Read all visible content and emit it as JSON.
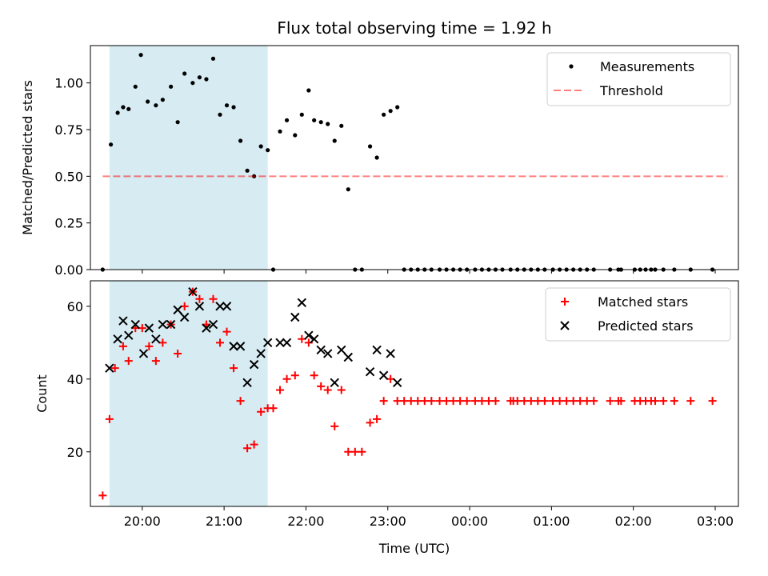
{
  "chart_data": [
    {
      "type": "scatter",
      "title": "Flux total observing time = 1.92 h",
      "xlabel": "",
      "ylabel": "Matched/Predicted stars",
      "ylim": [
        0,
        1.2
      ],
      "xlim": [
        "19:22",
        "03:17"
      ],
      "yticks": [
        0.0,
        0.25,
        0.5,
        0.75,
        1.0
      ],
      "ytick_labels": [
        "0.00",
        "0.25",
        "0.50",
        "0.75",
        "1.00"
      ],
      "shaded_span": [
        "19:36",
        "21:32"
      ],
      "shaded_color": "#add8e6",
      "legend_position": "upper right",
      "series": [
        {
          "name": "Measurements",
          "marker": "dot",
          "color": "#000000",
          "points": [
            [
              "19:31",
              0.0
            ],
            [
              "19:37",
              0.67
            ],
            [
              "19:42",
              0.84
            ],
            [
              "19:46",
              0.87
            ],
            [
              "19:50",
              0.86
            ],
            [
              "19:55",
              0.98
            ],
            [
              "19:59",
              1.15
            ],
            [
              "20:04",
              0.9
            ],
            [
              "20:10",
              0.88
            ],
            [
              "20:15",
              0.91
            ],
            [
              "20:21",
              0.98
            ],
            [
              "20:26",
              0.79
            ],
            [
              "20:31",
              1.05
            ],
            [
              "20:37",
              1.0
            ],
            [
              "20:42",
              1.03
            ],
            [
              "20:47",
              1.02
            ],
            [
              "20:52",
              1.13
            ],
            [
              "20:57",
              0.83
            ],
            [
              "21:02",
              0.88
            ],
            [
              "21:07",
              0.87
            ],
            [
              "21:12",
              0.69
            ],
            [
              "21:17",
              0.53
            ],
            [
              "21:22",
              0.5
            ],
            [
              "21:27",
              0.66
            ],
            [
              "21:32",
              0.64
            ],
            [
              "21:36",
              0.0
            ],
            [
              "21:41",
              0.74
            ],
            [
              "21:46",
              0.8
            ],
            [
              "21:52",
              0.72
            ],
            [
              "21:57",
              0.83
            ],
            [
              "22:02",
              0.96
            ],
            [
              "22:06",
              0.8
            ],
            [
              "22:11",
              0.79
            ],
            [
              "22:16",
              0.78
            ],
            [
              "22:21",
              0.69
            ],
            [
              "22:26",
              0.77
            ],
            [
              "22:31",
              0.43
            ],
            [
              "22:36",
              0.0
            ],
            [
              "22:41",
              0.0
            ],
            [
              "22:47",
              0.66
            ],
            [
              "22:52",
              0.6
            ],
            [
              "22:57",
              0.83
            ],
            [
              "23:02",
              0.85
            ],
            [
              "23:07",
              0.87
            ],
            [
              "23:12",
              0.0
            ],
            [
              "23:17",
              0.0
            ],
            [
              "23:22",
              0.0
            ],
            [
              "23:27",
              0.0
            ],
            [
              "23:32",
              0.0
            ],
            [
              "23:38",
              0.0
            ],
            [
              "23:43",
              0.0
            ],
            [
              "23:48",
              0.0
            ],
            [
              "23:53",
              0.0
            ],
            [
              "23:58",
              0.0
            ],
            [
              "00:04",
              0.0
            ],
            [
              "00:09",
              0.0
            ],
            [
              "00:14",
              0.0
            ],
            [
              "00:19",
              0.0
            ],
            [
              "00:24",
              0.0
            ],
            [
              "00:30",
              0.0
            ],
            [
              "00:35",
              0.0
            ],
            [
              "00:40",
              0.0
            ],
            [
              "00:45",
              0.0
            ],
            [
              "00:50",
              0.0
            ],
            [
              "00:55",
              0.0
            ],
            [
              "01:01",
              0.0
            ],
            [
              "01:06",
              0.0
            ],
            [
              "01:11",
              0.0
            ],
            [
              "01:16",
              0.0
            ],
            [
              "01:21",
              0.0
            ],
            [
              "01:26",
              0.0
            ],
            [
              "01:31",
              0.0
            ],
            [
              "01:43",
              0.0
            ],
            [
              "01:49",
              0.0
            ],
            [
              "01:51",
              0.0
            ],
            [
              "02:01",
              0.0
            ],
            [
              "02:05",
              0.0
            ],
            [
              "02:09",
              0.0
            ],
            [
              "02:13",
              0.0
            ],
            [
              "02:16",
              0.0
            ],
            [
              "02:22",
              0.0
            ],
            [
              "02:30",
              0.0
            ],
            [
              "02:42",
              0.0
            ],
            [
              "02:58",
              0.0
            ]
          ]
        },
        {
          "name": "Threshold",
          "type": "line",
          "style": "dashed",
          "color": "#ff0000",
          "alpha": 0.5,
          "points": [
            [
              "19:31",
              0.5
            ],
            [
              "03:09",
              0.5
            ]
          ]
        }
      ]
    },
    {
      "type": "scatter",
      "title": "",
      "xlabel": "Time (UTC)",
      "ylabel": "Count",
      "ylim": [
        5,
        67
      ],
      "xlim": [
        "19:22",
        "03:17"
      ],
      "yticks": [
        20,
        40,
        60
      ],
      "ytick_labels": [
        "20",
        "40",
        "60"
      ],
      "xticks": [
        "20:00",
        "21:00",
        "22:00",
        "23:00",
        "00:00",
        "01:00",
        "02:00",
        "03:00"
      ],
      "xtick_labels": [
        "20:00",
        "21:00",
        "22:00",
        "23:00",
        "00:00",
        "01:00",
        "02:00",
        "03:00"
      ],
      "shaded_span": [
        "19:36",
        "21:32"
      ],
      "shaded_color": "#add8e6",
      "legend_position": "upper right",
      "series": [
        {
          "name": "Matched stars",
          "marker": "plus",
          "color": "#ff0000",
          "points": [
            [
              "19:31",
              8
            ],
            [
              "19:36",
              29
            ],
            [
              "19:40",
              43
            ],
            [
              "19:46",
              49
            ],
            [
              "19:50",
              45
            ],
            [
              "19:55",
              54
            ],
            [
              "20:00",
              54
            ],
            [
              "20:05",
              49
            ],
            [
              "20:10",
              45
            ],
            [
              "20:15",
              50
            ],
            [
              "20:21",
              55
            ],
            [
              "20:26",
              47
            ],
            [
              "20:31",
              60
            ],
            [
              "20:37",
              64
            ],
            [
              "20:42",
              62
            ],
            [
              "20:47",
              55
            ],
            [
              "20:52",
              62
            ],
            [
              "20:57",
              50
            ],
            [
              "21:02",
              53
            ],
            [
              "21:07",
              43
            ],
            [
              "21:12",
              34
            ],
            [
              "21:17",
              21
            ],
            [
              "21:22",
              22
            ],
            [
              "21:27",
              31
            ],
            [
              "21:32",
              32
            ],
            [
              "21:36",
              32
            ],
            [
              "21:41",
              37
            ],
            [
              "21:46",
              40
            ],
            [
              "21:52",
              41
            ],
            [
              "21:57",
              51
            ],
            [
              "22:02",
              50
            ],
            [
              "22:06",
              41
            ],
            [
              "22:11",
              38
            ],
            [
              "22:16",
              37
            ],
            [
              "22:21",
              27
            ],
            [
              "22:26",
              37
            ],
            [
              "22:31",
              20
            ],
            [
              "22:36",
              20
            ],
            [
              "22:41",
              20
            ],
            [
              "22:47",
              28
            ],
            [
              "22:52",
              29
            ],
            [
              "22:57",
              34
            ],
            [
              "23:02",
              40
            ],
            [
              "23:07",
              34
            ],
            [
              "23:12",
              34
            ],
            [
              "23:17",
              34
            ],
            [
              "23:22",
              34
            ],
            [
              "23:27",
              34
            ],
            [
              "23:32",
              34
            ],
            [
              "23:38",
              34
            ],
            [
              "23:43",
              34
            ],
            [
              "23:48",
              34
            ],
            [
              "23:53",
              34
            ],
            [
              "23:58",
              34
            ],
            [
              "00:04",
              34
            ],
            [
              "00:09",
              34
            ],
            [
              "00:14",
              34
            ],
            [
              "00:19",
              34
            ],
            [
              "00:30",
              34
            ],
            [
              "00:32",
              34
            ],
            [
              "00:35",
              34
            ],
            [
              "00:40",
              34
            ],
            [
              "00:45",
              34
            ],
            [
              "00:50",
              34
            ],
            [
              "00:55",
              34
            ],
            [
              "01:01",
              34
            ],
            [
              "01:06",
              34
            ],
            [
              "01:11",
              34
            ],
            [
              "01:16",
              34
            ],
            [
              "01:21",
              34
            ],
            [
              "01:26",
              34
            ],
            [
              "01:31",
              34
            ],
            [
              "01:43",
              34
            ],
            [
              "01:49",
              34
            ],
            [
              "01:51",
              34
            ],
            [
              "02:01",
              34
            ],
            [
              "02:05",
              34
            ],
            [
              "02:09",
              34
            ],
            [
              "02:13",
              34
            ],
            [
              "02:16",
              34
            ],
            [
              "02:22",
              34
            ],
            [
              "02:30",
              34
            ],
            [
              "02:42",
              34
            ],
            [
              "02:58",
              34
            ]
          ]
        },
        {
          "name": "Predicted stars",
          "marker": "x",
          "color": "#000000",
          "points": [
            [
              "19:36",
              43
            ],
            [
              "19:42",
              51
            ],
            [
              "19:46",
              56
            ],
            [
              "19:50",
              52
            ],
            [
              "19:55",
              55
            ],
            [
              "20:01",
              47
            ],
            [
              "20:05",
              54
            ],
            [
              "20:10",
              51
            ],
            [
              "20:15",
              55
            ],
            [
              "20:21",
              55
            ],
            [
              "20:26",
              59
            ],
            [
              "20:31",
              57
            ],
            [
              "20:37",
              64
            ],
            [
              "20:42",
              60
            ],
            [
              "20:47",
              54
            ],
            [
              "20:52",
              55
            ],
            [
              "20:57",
              60
            ],
            [
              "21:02",
              60
            ],
            [
              "21:07",
              49
            ],
            [
              "21:12",
              49
            ],
            [
              "21:17",
              39
            ],
            [
              "21:22",
              44
            ],
            [
              "21:27",
              47
            ],
            [
              "21:32",
              50
            ],
            [
              "21:41",
              50
            ],
            [
              "21:46",
              50
            ],
            [
              "21:52",
              57
            ],
            [
              "21:57",
              61
            ],
            [
              "22:02",
              52
            ],
            [
              "22:06",
              51
            ],
            [
              "22:11",
              48
            ],
            [
              "22:16",
              47
            ],
            [
              "22:21",
              39
            ],
            [
              "22:26",
              48
            ],
            [
              "22:31",
              46
            ],
            [
              "22:47",
              42
            ],
            [
              "22:52",
              48
            ],
            [
              "22:57",
              41
            ],
            [
              "23:02",
              47
            ],
            [
              "23:07",
              39
            ]
          ]
        }
      ]
    }
  ]
}
